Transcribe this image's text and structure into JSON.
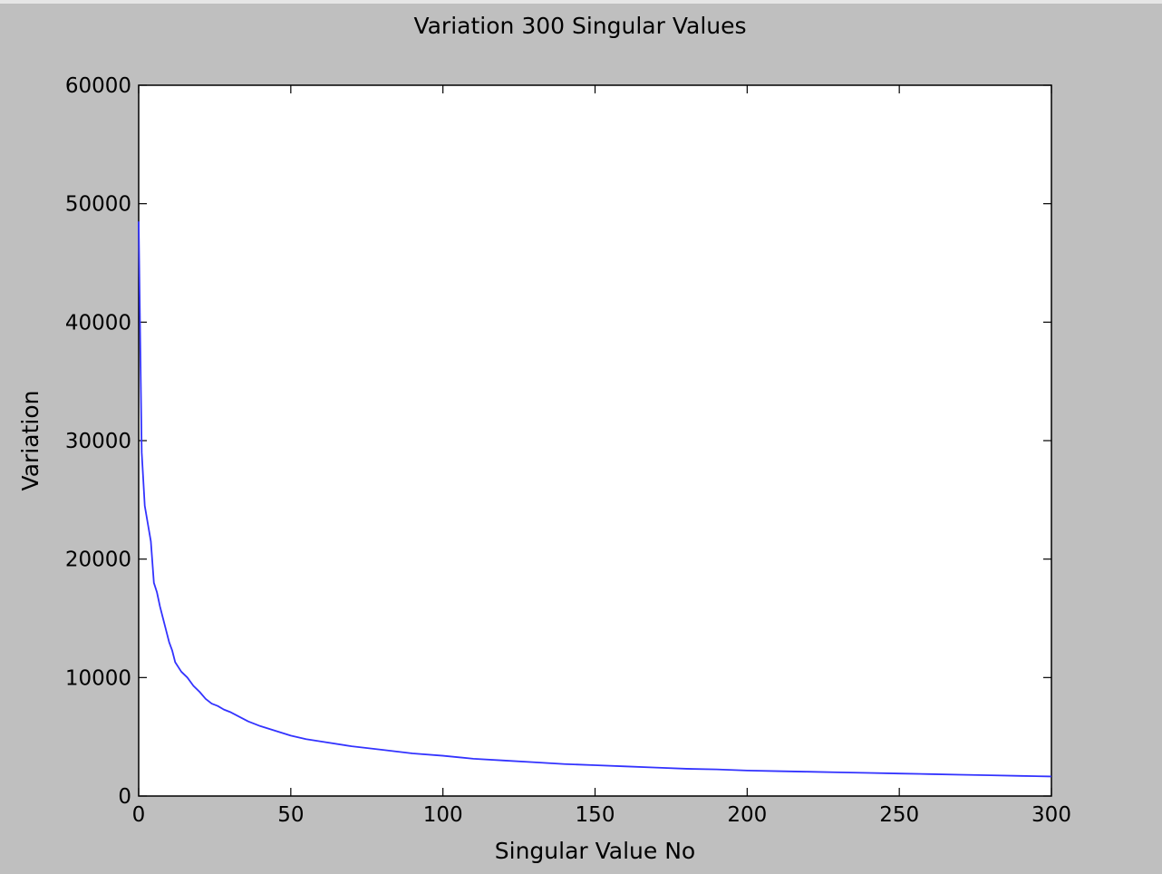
{
  "chart_data": {
    "type": "line",
    "title": "Variation 300 Singular Values",
    "xlabel": "Singular Value No",
    "ylabel": "Variation",
    "xlim": [
      0,
      300
    ],
    "ylim": [
      0,
      60000
    ],
    "xticks": [
      0,
      50,
      100,
      150,
      200,
      250,
      300
    ],
    "yticks": [
      0,
      10000,
      20000,
      30000,
      40000,
      50000,
      60000
    ],
    "grid": false,
    "series": [
      {
        "color": "#3333ff",
        "x": [
          0,
          1,
          2,
          3,
          4,
          5,
          6,
          7,
          8,
          9,
          10,
          11,
          12,
          14,
          16,
          18,
          20,
          22,
          24,
          26,
          28,
          30,
          33,
          36,
          40,
          45,
          50,
          55,
          60,
          70,
          80,
          90,
          100,
          110,
          120,
          130,
          140,
          150,
          160,
          170,
          180,
          190,
          200,
          210,
          220,
          230,
          240,
          250,
          260,
          270,
          280,
          290,
          300
        ],
        "y": [
          48500,
          29000,
          24500,
          23000,
          21500,
          18000,
          17200,
          16000,
          15000,
          14000,
          13000,
          12300,
          11300,
          10500,
          10000,
          9300,
          8800,
          8200,
          7800,
          7600,
          7300,
          7100,
          6700,
          6300,
          5900,
          5500,
          5100,
          4800,
          4600,
          4200,
          3900,
          3600,
          3400,
          3150,
          3000,
          2850,
          2700,
          2600,
          2500,
          2400,
          2300,
          2250,
          2150,
          2100,
          2050,
          2000,
          1950,
          1900,
          1850,
          1800,
          1750,
          1700,
          1650
        ]
      }
    ]
  }
}
